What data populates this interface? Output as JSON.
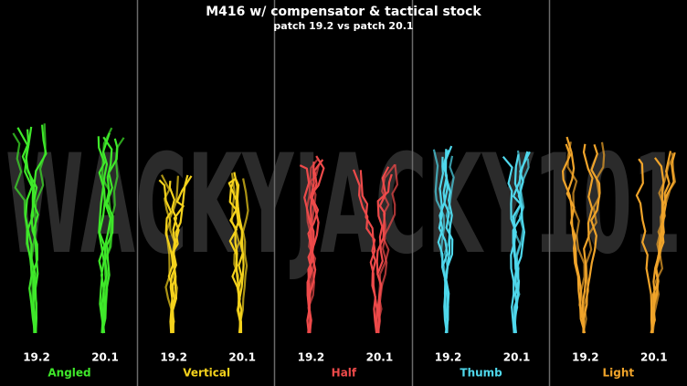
{
  "title": "M416 w/ compensator & tactical stock",
  "subtitle": "patch 19.2 vs patch 20.1",
  "watermark": "WACKYJACKY101",
  "panels": [
    {
      "label": "Angled",
      "color": "#3fe82a",
      "patches": [
        "19.2",
        "20.1"
      ]
    },
    {
      "label": "Vertical",
      "color": "#f4d21c",
      "patches": [
        "19.2",
        "20.1"
      ]
    },
    {
      "label": "Half",
      "color": "#ee4a4a",
      "patches": [
        "19.2",
        "20.1"
      ]
    },
    {
      "label": "Thumb",
      "color": "#4fd8ec",
      "patches": [
        "19.2",
        "20.1"
      ]
    },
    {
      "label": "Light",
      "color": "#f0a42a",
      "patches": [
        "19.2",
        "20.1"
      ]
    }
  ]
}
